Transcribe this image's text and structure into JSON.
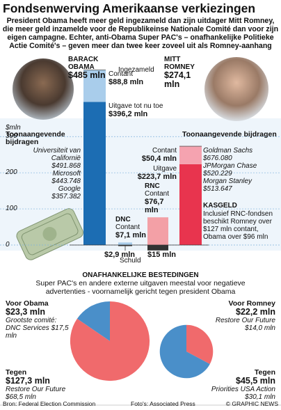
{
  "header": {
    "title": "Fondsenwerving Amerikaanse verkiezingen",
    "subtitle": "President Obama heeft meer geld ingezameld dan zijn uitdager Mitt Romney, die meer geld inzamelde voor de Republikeinse Nationale Comité dan voor zijn eigen campagne. Echter, anti-Obama Super PAC's – onafhankelijke Politieke Actie Comité's – geven meer dan twee keer zoveel uit als Romney-aanhang"
  },
  "chart_data": [
    {
      "type": "bar",
      "ylabel": "$mln",
      "ylim": [
        0,
        470
      ],
      "yticks": [
        0,
        100,
        200,
        300
      ],
      "grid": true,
      "raised_label": "Ingezameld",
      "debt_title": "Schuld",
      "bars": [
        {
          "name": "BARACK OBAMA",
          "total": 485,
          "total_label": "$485 mln",
          "segments": [
            {
              "label": "Uitgave tot nu toe",
              "value": 396.2,
              "value_label": "$396,2 mln",
              "color": "#1c6db3"
            },
            {
              "label": "Contant",
              "value": 88.8,
              "value_label": "$88,8 mln",
              "color": "#a9cdeb"
            }
          ]
        },
        {
          "name": "MITT ROMNEY",
          "total": 274.1,
          "total_label": "$274,1 mln",
          "segments": [
            {
              "label": "Uitgave",
              "value": 223.7,
              "value_label": "$223,7 mln",
              "color": "#e8344e"
            },
            {
              "label": "Contant",
              "value": 50.4,
              "value_label": "$50,4 mln",
              "color": "#f5a3b0"
            }
          ]
        },
        {
          "name": "DNC",
          "segments": [
            {
              "label": "Contant",
              "value": 7.1,
              "value_label": "$7,1 mln",
              "color": "#a9cdeb"
            }
          ],
          "debt": 2.9,
          "debt_label": "$2,9 mln"
        },
        {
          "name": "RNC",
          "segments": [
            {
              "label": "Contant",
              "value": 76.7,
              "value_label": "$76,7 mln",
              "color": "#f3a0a6"
            }
          ],
          "debt": 15,
          "debt_label": "$15 mln"
        }
      ]
    },
    {
      "type": "pie",
      "slices": [
        {
          "label": "Voor Obama",
          "value": 23.3,
          "value_label": "$23,3 mln",
          "note": "Grootste comité: DNC Services $17,5 mln",
          "color": "#4a8fc9"
        },
        {
          "label": "Tegen",
          "value": 127.3,
          "value_label": "$127,3 mln",
          "note": "Restore Our Future $68,5 mln",
          "color": "#f06a6c"
        }
      ]
    },
    {
      "type": "pie",
      "slices": [
        {
          "label": "Voor Romney",
          "value": 22.2,
          "value_label": "$22,2 mln",
          "note": "Restore Our Future $14,0 mln",
          "color": "#f06a6c"
        },
        {
          "label": "Tegen",
          "value": 45.5,
          "value_label": "$45,5 mln",
          "note": "Priorities USA Action $30,1 mln",
          "color": "#4a8fc9"
        }
      ]
    }
  ],
  "donors": {
    "left": {
      "title": "Toonaangevende bijdragen",
      "items": [
        {
          "name": "Universiteit van Californië",
          "amount": "$491.868"
        },
        {
          "name": "Microsoft",
          "amount": "$443.748"
        },
        {
          "name": "Google",
          "amount": "$357.382"
        }
      ]
    },
    "right": {
      "title": "Toonaangevende bijdragen",
      "items": [
        {
          "name": "Goldman Sachs",
          "amount": "$676.080"
        },
        {
          "name": "JPMorgan Chase",
          "amount": "$520.229"
        },
        {
          "name": "Morgan Stanley",
          "amount": "$513.647"
        }
      ]
    }
  },
  "cash": {
    "title": "KASGELD",
    "text": "Inclusief RNC-fondsen beschikt Romney over $127 mln contant, Obama over $96 mln"
  },
  "spending": {
    "title": "ONAFHANKELIJKE BESTEDINGEN",
    "subtitle": "Super PAC's en andere externe uitgaven meestal voor negatieve advertenties - voornamelijk gericht tegen president Obama"
  },
  "footer": {
    "source": "Bron: Federal Election Commission",
    "photos": "Foto's: Associated Press",
    "credit": "© GRAPHIC NEWS"
  }
}
